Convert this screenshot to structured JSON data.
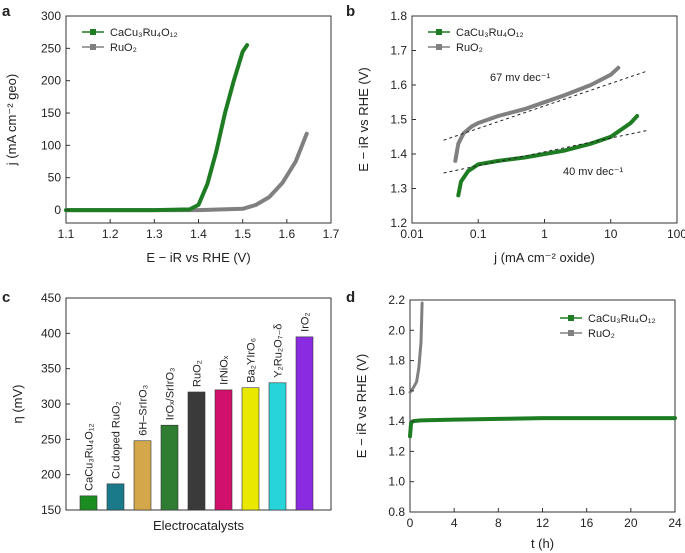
{
  "panels": {
    "a": "a",
    "b": "b",
    "c": "c",
    "d": "d"
  },
  "colors": {
    "green": "#1e7d23",
    "gray": "#808080"
  },
  "legend": {
    "cacu": "CaCu₃Ru₄O₁₂",
    "ruo2": "RuO₂"
  },
  "chart_data": [
    {
      "panel": "a",
      "type": "line",
      "xlabel": "E − iR vs RHE (V)",
      "ylabel": "j (mA cm⁻² geo)",
      "xlim": [
        1.1,
        1.7
      ],
      "ylim": [
        -20,
        300
      ],
      "xticks": [
        "1.1",
        "1.2",
        "1.3",
        "1.4",
        "1.5",
        "1.6",
        "1.7"
      ],
      "yticks": [
        "0",
        "50",
        "100",
        "150",
        "200",
        "250",
        "300"
      ],
      "series": [
        {
          "name": "CaCu₃Ru₄O₁₂",
          "color": "#1e7d23",
          "x": [
            1.1,
            1.3,
            1.38,
            1.4,
            1.42,
            1.44,
            1.46,
            1.48,
            1.5,
            1.51
          ],
          "y": [
            0,
            0,
            1,
            8,
            40,
            90,
            150,
            200,
            245,
            255
          ]
        },
        {
          "name": "RuO₂",
          "color": "#808080",
          "x": [
            1.1,
            1.4,
            1.5,
            1.53,
            1.56,
            1.59,
            1.62,
            1.645
          ],
          "y": [
            0,
            0,
            2,
            8,
            20,
            42,
            75,
            118
          ]
        }
      ]
    },
    {
      "panel": "b",
      "type": "line",
      "xscale": "log",
      "xlabel": "j (mA cm⁻² oxide)",
      "ylabel": "E − iR vs RHE (V)",
      "xlim": [
        0.01,
        100
      ],
      "ylim": [
        1.2,
        1.8
      ],
      "xticks": [
        "0.01",
        "0.1",
        "1",
        "10",
        "100"
      ],
      "yticks": [
        "1.2",
        "1.3",
        "1.4",
        "1.5",
        "1.6",
        "1.7",
        "1.8"
      ],
      "annotations": {
        "ruo2": "67 mv dec⁻¹",
        "cacu": "40 mv dec⁻¹"
      },
      "series": [
        {
          "name": "CaCu₃Ru₄O₁₂",
          "color": "#1e7d23",
          "x": [
            0.05,
            0.055,
            0.07,
            0.1,
            0.2,
            0.5,
            1,
            2,
            5,
            10,
            20,
            25
          ],
          "y": [
            1.28,
            1.32,
            1.35,
            1.37,
            1.38,
            1.39,
            1.4,
            1.41,
            1.43,
            1.45,
            1.49,
            1.51
          ]
        },
        {
          "name": "RuO₂",
          "color": "#808080",
          "x": [
            0.045,
            0.05,
            0.06,
            0.08,
            0.1,
            0.2,
            0.5,
            1,
            2,
            5,
            10,
            13
          ],
          "y": [
            1.38,
            1.43,
            1.46,
            1.48,
            1.49,
            1.51,
            1.53,
            1.55,
            1.57,
            1.6,
            1.63,
            1.65
          ]
        }
      ],
      "fits": [
        {
          "color": "#222",
          "x": [
            0.03,
            35
          ],
          "y": [
            1.44,
            1.64
          ]
        },
        {
          "color": "#222",
          "x": [
            0.03,
            35
          ],
          "y": [
            1.345,
            1.468
          ]
        }
      ]
    },
    {
      "panel": "c",
      "type": "bar",
      "xlabel": "Electrocatalysts",
      "ylabel": "η (mV)",
      "ylim": [
        150,
        450
      ],
      "yticks": [
        "150",
        "200",
        "250",
        "300",
        "350",
        "400",
        "450"
      ],
      "categories": [
        "CaCu₃Ru₄O₁₂",
        "Cu doped RuO₂",
        "6H–SrIrO₃",
        "IrOₓ/SrIrO₃",
        "RuO₂",
        "IrNiOₓ",
        "Ba₂YIrO₆",
        "Y₂Ru₂O₇₋δ",
        "IrO₂"
      ],
      "values": [
        170,
        187,
        248,
        270,
        317,
        320,
        323,
        330,
        395
      ],
      "colors": [
        "#1b8c1f",
        "#1b7a8a",
        "#d4a84a",
        "#2f7d33",
        "#3a3a3a",
        "#d0106a",
        "#e8e800",
        "#27d5d8",
        "#8a2be2"
      ]
    },
    {
      "panel": "d",
      "type": "line",
      "xlabel": "t (h)",
      "ylabel": "E − iR vs RHE (V)",
      "xlim": [
        0,
        24
      ],
      "ylim": [
        0.8,
        2.2
      ],
      "xticks": [
        "0",
        "4",
        "8",
        "12",
        "16",
        "20",
        "24"
      ],
      "yticks": [
        "0.8",
        "1.0",
        "1.2",
        "1.4",
        "1.6",
        "1.8",
        "2.0",
        "2.2"
      ],
      "series": [
        {
          "name": "CaCu₃Ru₄O₁₂",
          "color": "#1e7d23",
          "x": [
            0,
            0.1,
            0.3,
            1,
            4,
            8,
            12,
            16,
            20,
            24
          ],
          "y": [
            1.3,
            1.39,
            1.4,
            1.405,
            1.41,
            1.415,
            1.42,
            1.42,
            1.42,
            1.42
          ]
        },
        {
          "name": "RuO₂",
          "color": "#808080",
          "x": [
            0,
            0.3,
            0.6,
            0.8,
            1.0,
            1.1
          ],
          "y": [
            1.59,
            1.62,
            1.66,
            1.75,
            1.92,
            2.18
          ]
        }
      ]
    }
  ]
}
